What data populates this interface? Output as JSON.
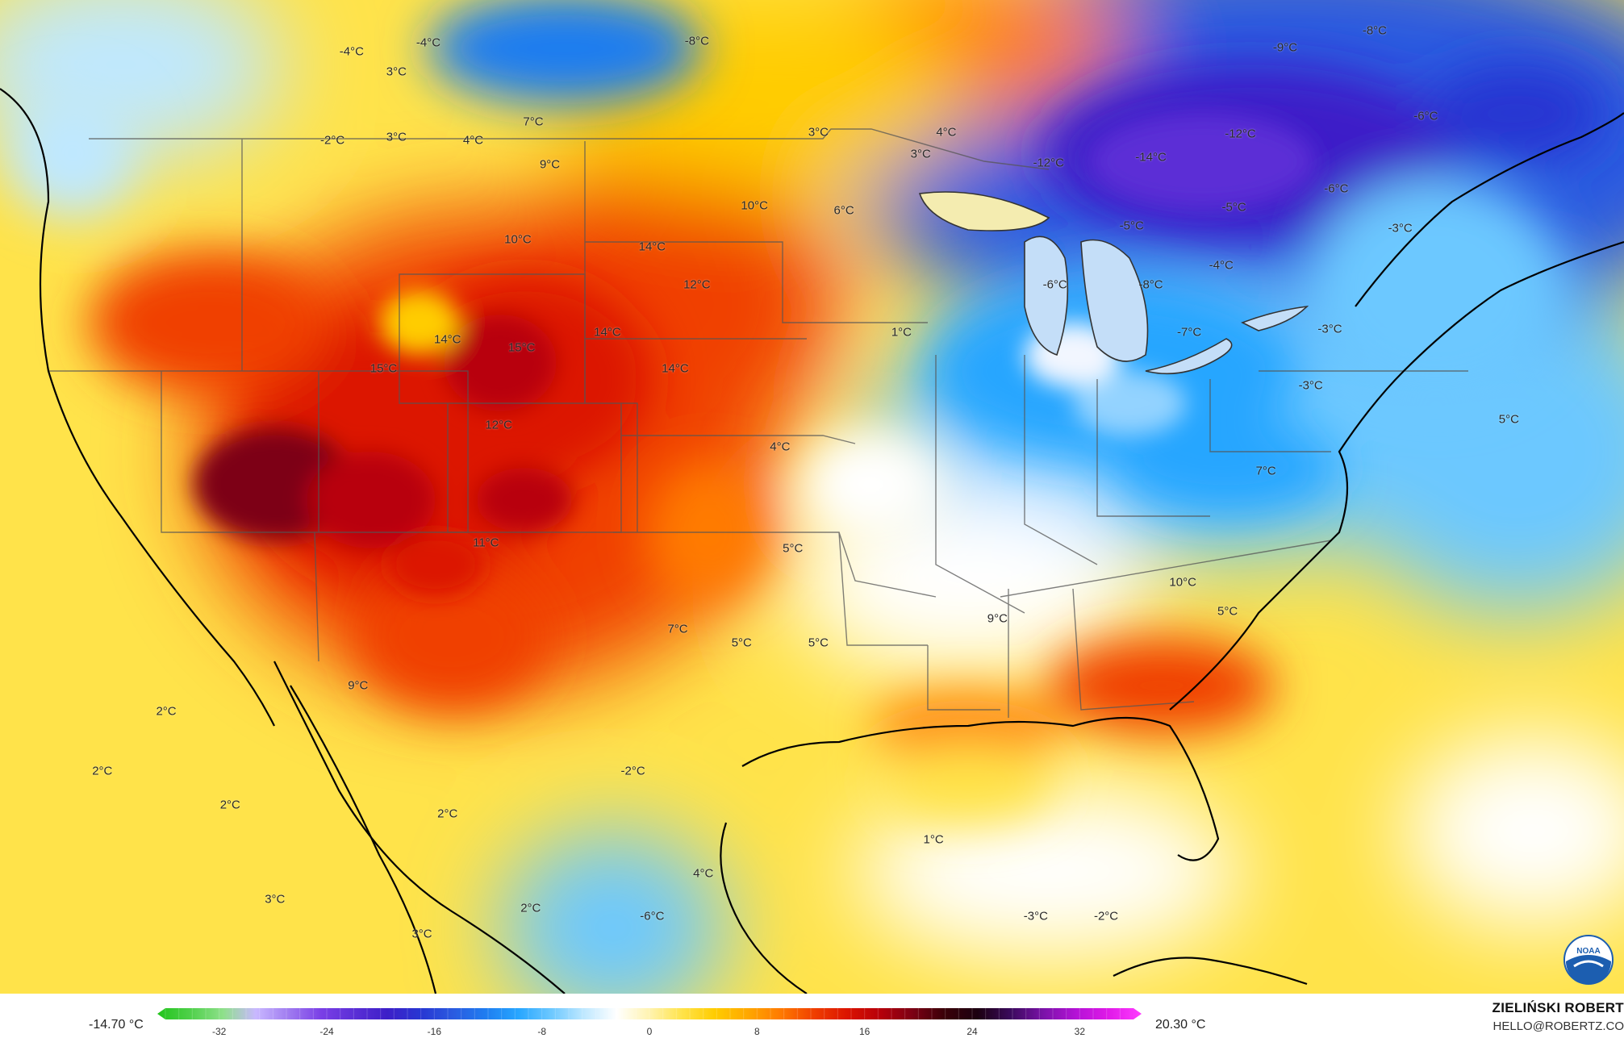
{
  "map": {
    "temperature_labels": [
      {
        "text": "-4°C",
        "lon": -121.5,
        "lat": 49.5
      },
      {
        "text": "-4°C",
        "lon": -127.5,
        "lat": 49.0
      },
      {
        "text": "3°C",
        "lon": -124.0,
        "lat": 47.8
      },
      {
        "text": "-8°C",
        "lon": -100.5,
        "lat": 49.6
      },
      {
        "text": "7°C",
        "lon": -113.3,
        "lat": 44.9
      },
      {
        "text": "3°C",
        "lon": -124.0,
        "lat": 44.0
      },
      {
        "text": "-2°C",
        "lon": -129.0,
        "lat": 43.8
      },
      {
        "text": "4°C",
        "lon": -118.0,
        "lat": 43.8
      },
      {
        "text": "3°C",
        "lon": -91.0,
        "lat": 44.3
      },
      {
        "text": "4°C",
        "lon": -81.0,
        "lat": 44.3
      },
      {
        "text": "3°C",
        "lon": -83.0,
        "lat": 43.0
      },
      {
        "text": "-9°C",
        "lon": -54.5,
        "lat": 49.2
      },
      {
        "text": "-8°C",
        "lon": -47.5,
        "lat": 50.2
      },
      {
        "text": "-12°C",
        "lon": -58.0,
        "lat": 44.2
      },
      {
        "text": "-14°C",
        "lon": -65.0,
        "lat": 42.8
      },
      {
        "text": "-12°C",
        "lon": -73.0,
        "lat": 42.5
      },
      {
        "text": "-6°C",
        "lon": -43.5,
        "lat": 45.2
      },
      {
        "text": "-6°C",
        "lon": -50.5,
        "lat": 41.0
      },
      {
        "text": "9°C",
        "lon": -112.0,
        "lat": 42.4
      },
      {
        "text": "10°C",
        "lon": -96.0,
        "lat": 40.0
      },
      {
        "text": "6°C",
        "lon": -89.0,
        "lat": 39.7
      },
      {
        "text": "-5°C",
        "lon": -58.5,
        "lat": 39.9
      },
      {
        "text": "-3°C",
        "lon": -45.5,
        "lat": 38.7
      },
      {
        "text": "-5°C",
        "lon": -66.5,
        "lat": 38.8
      },
      {
        "text": "10°C",
        "lon": -114.5,
        "lat": 38.0
      },
      {
        "text": "14°C",
        "lon": -104.0,
        "lat": 37.6
      },
      {
        "text": "-4°C",
        "lon": -59.5,
        "lat": 36.5
      },
      {
        "text": "12°C",
        "lon": -100.5,
        "lat": 35.4
      },
      {
        "text": "-6°C",
        "lon": -72.5,
        "lat": 35.4
      },
      {
        "text": "-8°C",
        "lon": -65.0,
        "lat": 35.4
      },
      {
        "text": "-3°C",
        "lon": -51.0,
        "lat": 32.8
      },
      {
        "text": "14°C",
        "lon": -120.0,
        "lat": 32.2
      },
      {
        "text": "15°C",
        "lon": -114.2,
        "lat": 31.7
      },
      {
        "text": "14°C",
        "lon": -107.5,
        "lat": 32.6
      },
      {
        "text": "1°C",
        "lon": -84.5,
        "lat": 32.6
      },
      {
        "text": "-7°C",
        "lon": -62.0,
        "lat": 32.6
      },
      {
        "text": "15°C",
        "lon": -125.0,
        "lat": 30.5
      },
      {
        "text": "14°C",
        "lon": -102.2,
        "lat": 30.5
      },
      {
        "text": "-3°C",
        "lon": -52.5,
        "lat": 29.5
      },
      {
        "text": "5°C",
        "lon": -37.0,
        "lat": 27.5
      },
      {
        "text": "12°C",
        "lon": -116.0,
        "lat": 27.2
      },
      {
        "text": "4°C",
        "lon": -94.0,
        "lat": 25.9
      },
      {
        "text": "7°C",
        "lon": -56.0,
        "lat": 24.5
      },
      {
        "text": "5°C",
        "lon": -93.0,
        "lat": 20.0
      },
      {
        "text": "11°C",
        "lon": -117.0,
        "lat": 20.3
      },
      {
        "text": "10°C",
        "lon": -62.5,
        "lat": 18.0
      },
      {
        "text": "9°C",
        "lon": -77.0,
        "lat": 15.9
      },
      {
        "text": "5°C",
        "lon": -59.0,
        "lat": 16.3
      },
      {
        "text": "7°C",
        "lon": -102.0,
        "lat": 15.3
      },
      {
        "text": "5°C",
        "lon": -97.0,
        "lat": 14.5
      },
      {
        "text": "5°C",
        "lon": -91.0,
        "lat": 14.5
      },
      {
        "text": "9°C",
        "lon": -127.0,
        "lat": 12.0
      },
      {
        "text": "2°C",
        "lon": -142.0,
        "lat": 10.5
      },
      {
        "text": "2°C",
        "lon": -147.0,
        "lat": 7.0
      },
      {
        "text": "2°C",
        "lon": -137.0,
        "lat": 5.0
      },
      {
        "text": "-2°C",
        "lon": -105.5,
        "lat": 7.0
      },
      {
        "text": "2°C",
        "lon": -120.0,
        "lat": 4.5
      },
      {
        "text": "1°C",
        "lon": -82.0,
        "lat": 3.0
      },
      {
        "text": "3°C",
        "lon": -133.5,
        "lat": -0.5
      },
      {
        "text": "2°C",
        "lon": -113.5,
        "lat": -1.0
      },
      {
        "text": "4°C",
        "lon": -100.0,
        "lat": 1.0
      },
      {
        "text": "-6°C",
        "lon": -104.0,
        "lat": -1.5
      },
      {
        "text": "3°C",
        "lon": -122.0,
        "lat": -2.5
      },
      {
        "text": "-3°C",
        "lon": -74.0,
        "lat": -1.5
      },
      {
        "text": "-2°C",
        "lon": -68.5,
        "lat": -1.5
      }
    ]
  },
  "legend": {
    "min_label": "-14.70 °C",
    "max_label": "20.30 °C",
    "scale_min": -36,
    "scale_max": 36,
    "ticks": [
      {
        "value": -32,
        "label": "-32"
      },
      {
        "value": -24,
        "label": "-24"
      },
      {
        "value": -16,
        "label": "-16"
      },
      {
        "value": -8,
        "label": "-8"
      },
      {
        "value": 0,
        "label": "0"
      },
      {
        "value": 8,
        "label": "8"
      },
      {
        "value": 16,
        "label": "16"
      },
      {
        "value": 24,
        "label": "24"
      },
      {
        "value": 32,
        "label": "32"
      }
    ],
    "colors": [
      "#22c41c",
      "#4fd04a",
      "#8ee08a",
      "#c9b8ff",
      "#a07cf0",
      "#7a3fe6",
      "#5b2fd6",
      "#3d1fc8",
      "#2836d2",
      "#2a5ae0",
      "#1f7df0",
      "#27a6ff",
      "#6cc8ff",
      "#bfe8ff",
      "#ffffff",
      "#fff3b0",
      "#ffe34a",
      "#ffcc00",
      "#ffa800",
      "#ff7a00",
      "#f04000",
      "#dc1400",
      "#b8000a",
      "#7d0014",
      "#3a0008",
      "#1c0010",
      "#3a0a5c",
      "#7a12a8",
      "#b412d6",
      "#e01ae8",
      "#ff3cff"
    ]
  },
  "credit": {
    "name": "ZIELIŃSKI ROBERT",
    "email": "HELLO@ROBERTZ.CO"
  },
  "logo": {
    "text": "NOAA",
    "color": "#1c5eb0"
  }
}
